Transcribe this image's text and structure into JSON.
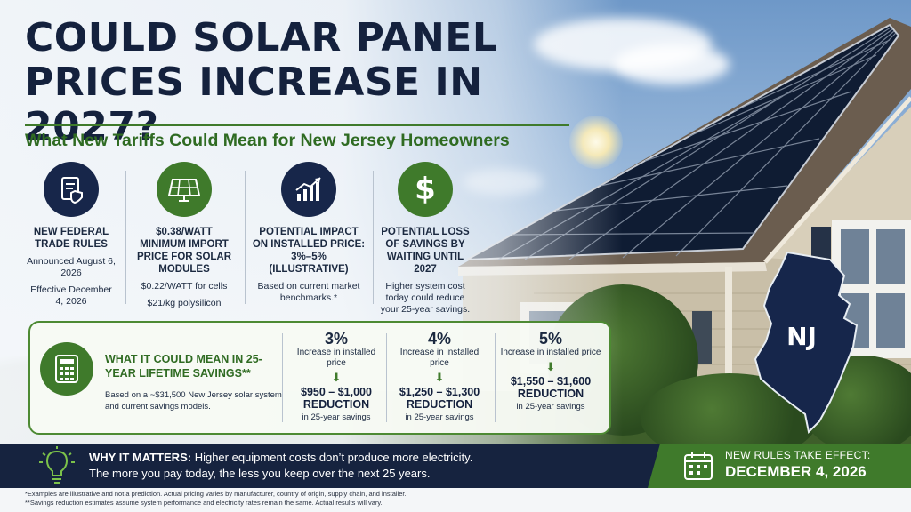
{
  "header": {
    "title_line1": "COULD SOLAR PANEL",
    "title_line2": "PRICES INCREASE IN 2027?",
    "subtitle": "What New Tariffs Could Mean for New Jersey Homeowners"
  },
  "facts": [
    {
      "icon": "document-shield-icon",
      "head": "NEW FEDERAL TRADE RULES",
      "body": [
        "Announced August 6, 2026",
        "Effective December 4, 2026"
      ]
    },
    {
      "icon": "solar-panel-icon",
      "head": "$0.38/WATT MINIMUM IMPORT PRICE FOR SOLAR MODULES",
      "body": [
        "$0.22/WATT for cells",
        "$21/kg polysilicon"
      ]
    },
    {
      "icon": "rising-chart-icon",
      "head": "POTENTIAL IMPACT ON INSTALLED PRICE: 3%–5% (ILLUSTRATIVE)",
      "body": [
        "Based on current market benchmarks.*"
      ]
    },
    {
      "icon": "dollar-icon",
      "head": "POTENTIAL LOSS OF SAVINGS BY WAITING UNTIL 2027",
      "body": [
        "Higher system cost today could reduce your 25-year savings."
      ]
    }
  ],
  "savings": {
    "title": "WHAT IT COULD MEAN IN 25-YEAR LIFETIME SAVINGS**",
    "note": "Based on a ~$31,500 New Jersey solar system and current savings models.",
    "scenarios": [
      {
        "pct": "3%",
        "label": "Increase in installed price",
        "range": "$950 – $1,000",
        "reduction": "REDUCTION",
        "tail": "in 25-year savings"
      },
      {
        "pct": "4%",
        "label": "Increase in installed price",
        "range": "$1,250 – $1,300",
        "reduction": "REDUCTION",
        "tail": "in 25-year savings"
      },
      {
        "pct": "5%",
        "label": "Increase in installed price",
        "range": "$1,550 – $1,600",
        "reduction": "REDUCTION",
        "tail": "in 25-year savings"
      }
    ]
  },
  "map": {
    "label": "NJ"
  },
  "footer_bar": {
    "why_label": "WHY IT MATTERS:",
    "why_text": " Higher equipment costs don’t produce more electricity.",
    "why_line2": "The more you pay today, the less you keep over the next 25 years.",
    "effect_label": "NEW RULES TAKE EFFECT:",
    "effect_date": "DECEMBER 4, 2026"
  },
  "footnotes": [
    "*Examples are illustrative and not a prediction. Actual pricing varies by manufacturer, country of origin, supply chain, and installer.",
    "**Savings reduction estimates assume system performance and electricity rates remain the same. Actual results will vary."
  ],
  "colors": {
    "navy": "#16233f",
    "green": "#3f7a2b",
    "title": "#14213d"
  }
}
